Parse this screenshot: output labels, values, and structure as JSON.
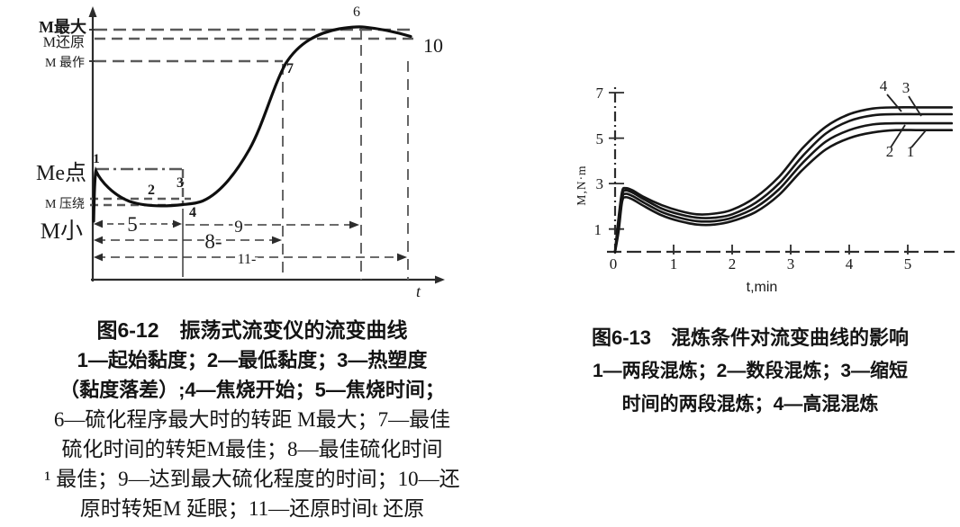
{
  "page": {
    "background": "#ffffff",
    "ink": "#1a1a1a",
    "dash_color": "#5a5a5a"
  },
  "figures": [
    {
      "figure_number": "图6-12",
      "caption_lines": [
        "图6-12　振荡式流变仪的流变曲线",
        "1—起始黏度；2—最低黏度；3—热塑度",
        "（黏度落差）;4—焦烧开始；5—焦烧时间；",
        "6—硫化程序最大时的转距 M最大；7—最佳",
        "硫化时间的转矩M最佳；8—最佳硫化时间",
        "¹ 最佳；9—达到最大硫化程度的时间；10—还",
        "原时转矩M 延眼；11—还原时间t 还原"
      ],
      "chart_data": {
        "type": "line",
        "title": "振荡式流变仪的流变曲线",
        "xlabel": "t",
        "grid": false,
        "y_level_labels": [
          "M最大",
          "M还原",
          "M 最作",
          "Me点",
          "M 压绕",
          "M小"
        ],
        "curve_point_labels": [
          "1",
          "2",
          "3",
          "4",
          "6",
          "7",
          "10"
        ],
        "dimension_labels": [
          "5",
          "9",
          "8-",
          "11-"
        ],
        "schematic": "torque rises from initial viscosity peak (1), dips to minimum viscosity (2-4), S-curve cure rise through optimum (7) to maximum torque (6), slight reversion to (10); horizontal spans 5,8,9,11 mark scorch time, optimum cure time, time to full cure and reversion time"
      }
    },
    {
      "figure_number": "图6-13",
      "caption_lines": [
        "图6-13　混炼条件对流变曲线的影响",
        "1—两段混炼；2—数段混炼；3—缩短",
        "时间的两段混炼；4—高混混炼"
      ],
      "chart_data": {
        "type": "line",
        "title": "混炼条件对流变曲线的影响",
        "xlabel": "t,min",
        "ylabel": "M,N·m",
        "x_ticks": [
          "0",
          "1",
          "2",
          "3",
          "4",
          "5"
        ],
        "y_ticks": [
          "7",
          "5",
          "3",
          "1"
        ],
        "xlim": [
          0,
          5.75
        ],
        "ylim": [
          0,
          7
        ],
        "grid": false,
        "legend_position": "inline-callouts",
        "callouts": [
          "4",
          "3",
          "2",
          "1"
        ],
        "series": [
          {
            "name": "1",
            "label": "两段混炼",
            "points": [
              [
                0,
                0
              ],
              [
                0.06,
                0.9
              ],
              [
                0.12,
                2.2
              ],
              [
                0.18,
                2.4
              ],
              [
                0.3,
                2.3
              ],
              [
                0.5,
                2.0
              ],
              [
                0.8,
                1.6
              ],
              [
                1.1,
                1.35
              ],
              [
                1.4,
                1.2
              ],
              [
                1.7,
                1.2
              ],
              [
                2.0,
                1.35
              ],
              [
                2.4,
                1.75
              ],
              [
                2.8,
                2.5
              ],
              [
                3.2,
                3.6
              ],
              [
                3.6,
                4.5
              ],
              [
                4.0,
                5.0
              ],
              [
                4.4,
                5.25
              ],
              [
                4.8,
                5.35
              ],
              [
                5.2,
                5.35
              ],
              [
                5.75,
                5.35
              ]
            ]
          },
          {
            "name": "2",
            "label": "数段混炼",
            "points": [
              [
                0,
                0
              ],
              [
                0.06,
                1.1
              ],
              [
                0.12,
                2.35
              ],
              [
                0.18,
                2.55
              ],
              [
                0.3,
                2.45
              ],
              [
                0.5,
                2.15
              ],
              [
                0.8,
                1.75
              ],
              [
                1.1,
                1.5
              ],
              [
                1.4,
                1.35
              ],
              [
                1.7,
                1.35
              ],
              [
                2.0,
                1.5
              ],
              [
                2.4,
                1.95
              ],
              [
                2.8,
                2.75
              ],
              [
                3.2,
                3.9
              ],
              [
                3.6,
                4.85
              ],
              [
                4.0,
                5.35
              ],
              [
                4.4,
                5.6
              ],
              [
                4.8,
                5.65
              ],
              [
                5.2,
                5.65
              ],
              [
                5.75,
                5.65
              ]
            ]
          },
          {
            "name": "3",
            "label": "缩短时间的两段混炼",
            "points": [
              [
                0,
                0
              ],
              [
                0.06,
                1.3
              ],
              [
                0.12,
                2.5
              ],
              [
                0.18,
                2.7
              ],
              [
                0.3,
                2.6
              ],
              [
                0.5,
                2.3
              ],
              [
                0.8,
                1.9
              ],
              [
                1.1,
                1.65
              ],
              [
                1.4,
                1.5
              ],
              [
                1.7,
                1.5
              ],
              [
                2.0,
                1.65
              ],
              [
                2.4,
                2.15
              ],
              [
                2.8,
                3.0
              ],
              [
                3.2,
                4.2
              ],
              [
                3.6,
                5.2
              ],
              [
                4.0,
                5.75
              ],
              [
                4.4,
                6.0
              ],
              [
                4.8,
                6.05
              ],
              [
                5.2,
                6.05
              ],
              [
                5.75,
                6.05
              ]
            ]
          },
          {
            "name": "4",
            "label": "高混混炼",
            "points": [
              [
                0,
                0
              ],
              [
                0.06,
                1.5
              ],
              [
                0.12,
                2.65
              ],
              [
                0.18,
                2.8
              ],
              [
                0.3,
                2.7
              ],
              [
                0.5,
                2.4
              ],
              [
                0.8,
                2.05
              ],
              [
                1.1,
                1.8
              ],
              [
                1.4,
                1.65
              ],
              [
                1.7,
                1.68
              ],
              [
                2.0,
                1.85
              ],
              [
                2.4,
                2.4
              ],
              [
                2.8,
                3.3
              ],
              [
                3.2,
                4.55
              ],
              [
                3.6,
                5.5
              ],
              [
                4.0,
                6.05
              ],
              [
                4.4,
                6.3
              ],
              [
                4.8,
                6.35
              ],
              [
                5.2,
                6.35
              ],
              [
                5.75,
                6.35
              ]
            ]
          }
        ]
      }
    }
  ]
}
